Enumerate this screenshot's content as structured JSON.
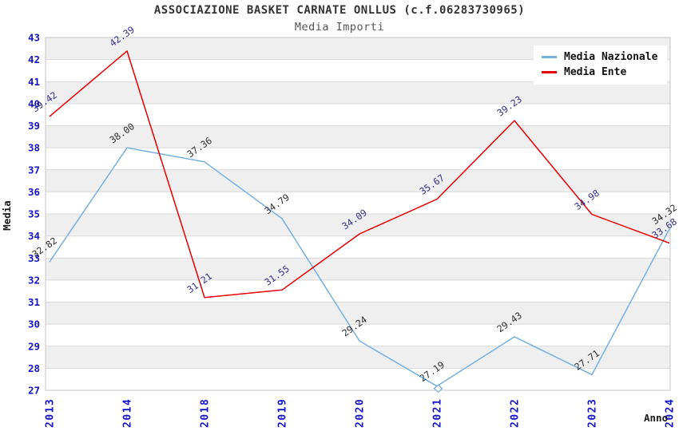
{
  "title": "ASSOCIAZIONE BASKET CARNATE ONLLUS (c.f.06283730965)",
  "subtitle": "Media Importi",
  "chart_data": {
    "type": "line",
    "categories": [
      "2013",
      "2014",
      "2018",
      "2019",
      "2020",
      "2021",
      "2022",
      "2023",
      "2024"
    ],
    "series": [
      {
        "name": "Media Nazionale",
        "color": "#74b0e2",
        "label_color": "#2d2d2d",
        "values": [
          32.82,
          38.0,
          37.36,
          34.79,
          29.24,
          27.19,
          29.43,
          27.71,
          34.32
        ]
      },
      {
        "name": "Media Ente",
        "color": "#e60000",
        "label_color": "#32328c",
        "values": [
          39.42,
          42.39,
          31.21,
          31.55,
          34.09,
          35.67,
          39.23,
          34.98,
          33.68
        ]
      }
    ],
    "xlabel": "Anno",
    "ylabel": "Media",
    "ylim": [
      27,
      43
    ],
    "ytick_step": 1,
    "grid": "horizontal-bands",
    "band_colors": [
      "#efefef",
      "#ffffff"
    ],
    "gridline_color": "#d9d9d9",
    "border_color": "#c6c6c6",
    "axis_tick_color": "#1414cc",
    "legend_position": "top-right",
    "highlight_point": {
      "series": "Media Nazionale",
      "category": "2021"
    }
  }
}
